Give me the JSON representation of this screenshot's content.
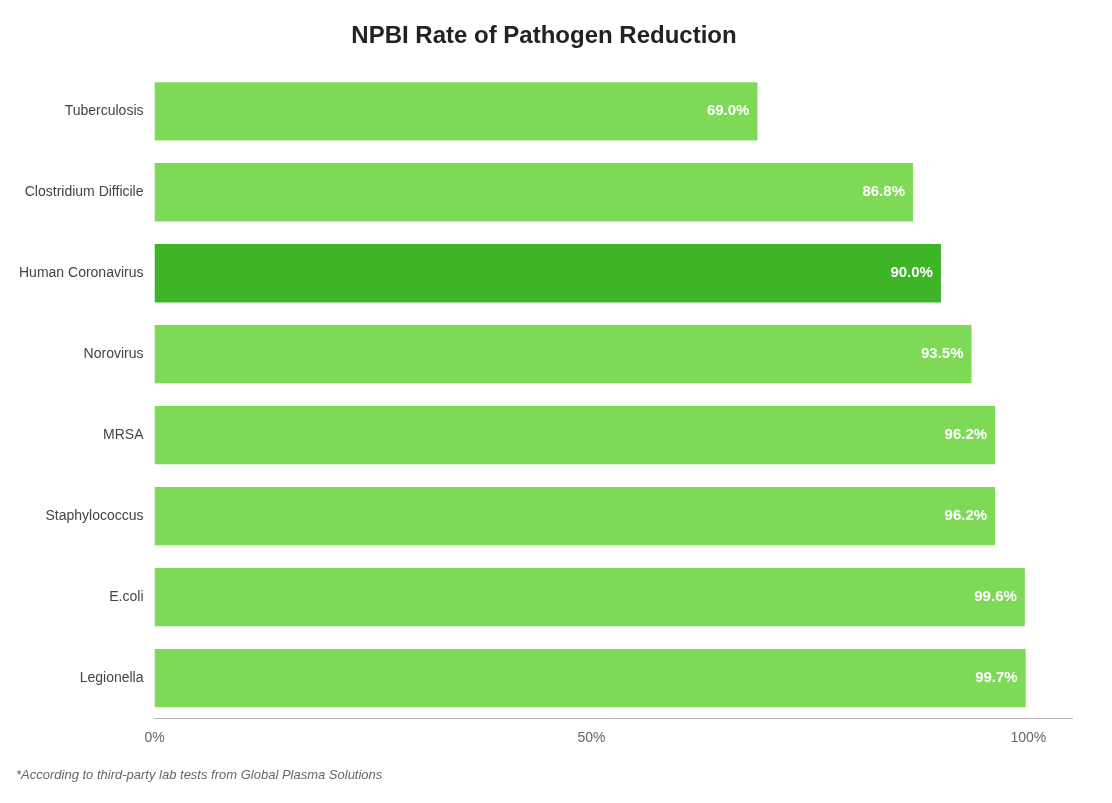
{
  "chart_data": {
    "type": "bar",
    "orientation": "horizontal",
    "title": "NPBI Rate of Pathogen Reduction",
    "categories": [
      "Tuberculosis",
      "Clostridium Difficile",
      "Human Coronavirus",
      "Norovirus",
      "MRSA",
      "Staphylococcus",
      "E.coli",
      "Legionella"
    ],
    "values": [
      69.0,
      86.8,
      90.0,
      93.5,
      96.2,
      96.2,
      99.6,
      99.7
    ],
    "value_labels": [
      "69.0%",
      "86.8%",
      "90.0%",
      "93.5%",
      "96.2%",
      "96.2%",
      "99.6%",
      "99.7%"
    ],
    "data_labels": true,
    "colors": [
      "#7ED957",
      "#7ED957",
      "#3DB526",
      "#7ED957",
      "#7ED957",
      "#7ED957",
      "#7ED957",
      "#7ED957"
    ],
    "xlim": [
      0,
      105
    ],
    "xticks": [
      {
        "value": 0,
        "label": "0%"
      },
      {
        "value": 50,
        "label": "50%"
      },
      {
        "value": 100,
        "label": "100%"
      }
    ],
    "grid": false,
    "annotations": [
      "*According to third-party lab tests from Global Plasma Solutions"
    ]
  }
}
